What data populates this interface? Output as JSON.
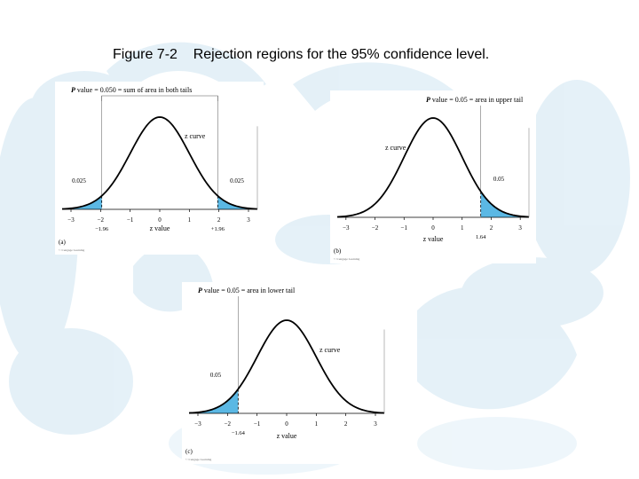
{
  "caption": "Figure 7-2    Rejection regions for the 95% confidence level.",
  "colors": {
    "shade": "#5bb8e4",
    "curve": "#000000",
    "background_watermark": "#dcecf5"
  },
  "panels": [
    {
      "id": "a",
      "header_prefix": "P",
      "header_text": " value = 0.050 = sum of area in both tails",
      "curve_label": "z curve",
      "axis_title": "z value",
      "ticks": [
        "−3",
        "−2",
        "−1",
        "0",
        "1",
        "2",
        "3"
      ],
      "tail_labels": [
        "0.025",
        "0.025"
      ],
      "critical_labels": [
        "−1.96",
        "+1.96"
      ],
      "critical_values": [
        -1.96,
        1.96
      ],
      "panel_label": "(a)",
      "credit": "© Cengage Learning"
    },
    {
      "id": "b",
      "header_prefix": "P",
      "header_text": " value = 0.05 = area in upper tail",
      "curve_label": "z curve",
      "axis_title": "z value",
      "ticks": [
        "−3",
        "−2",
        "−1",
        "0",
        "1",
        "2",
        "3"
      ],
      "tail_labels": [
        "0.05"
      ],
      "critical_labels": [
        "1.64"
      ],
      "critical_values": [
        1.64
      ],
      "panel_label": "(b)",
      "credit": "© Cengage Learning"
    },
    {
      "id": "c",
      "header_prefix": "P",
      "header_text": " value = 0.05 = area in lower tail",
      "curve_label": "z curve",
      "axis_title": "z value",
      "ticks": [
        "−3",
        "−2",
        "−1",
        "0",
        "1",
        "2",
        "3"
      ],
      "tail_labels": [
        "0.05"
      ],
      "critical_labels": [
        "−1.64"
      ],
      "critical_values": [
        -1.64
      ],
      "panel_label": "(c)",
      "credit": "© Cengage Learning"
    }
  ]
}
